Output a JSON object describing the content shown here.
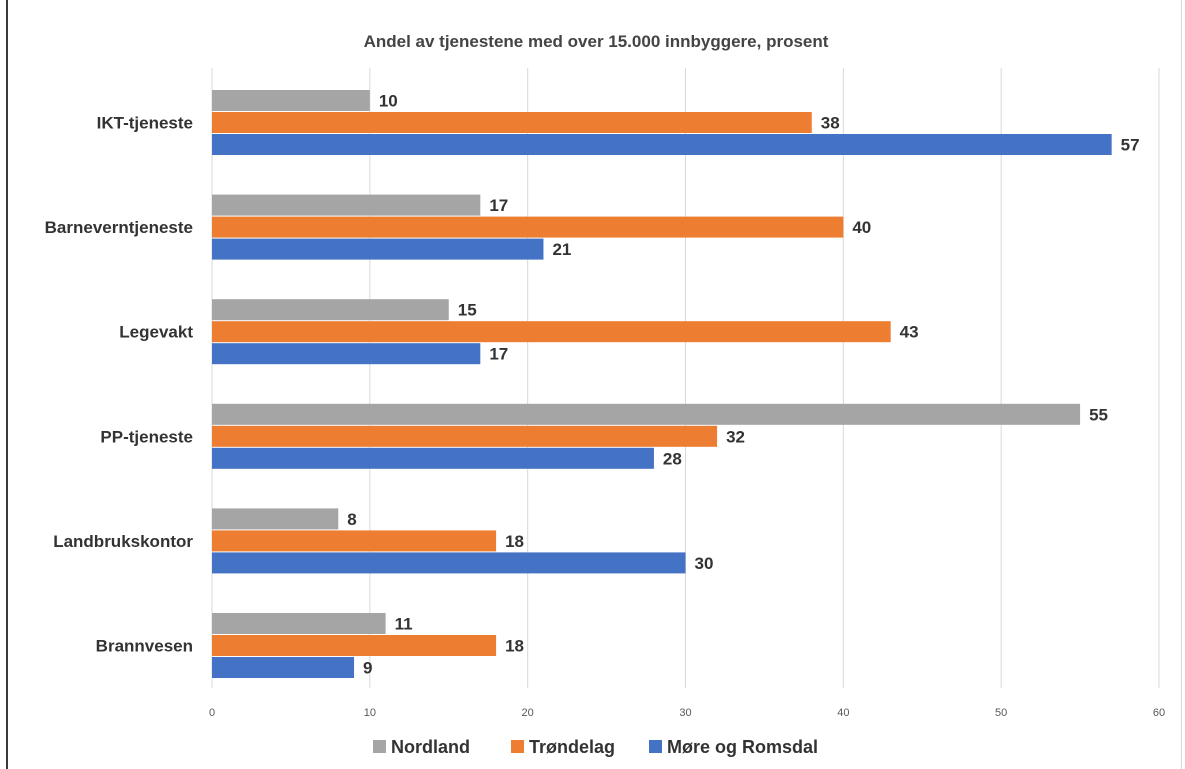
{
  "chart_data": {
    "type": "bar",
    "orientation": "horizontal",
    "title": "Andel av tjenestene med over 15.000 innbyggere, prosent",
    "categories": [
      "IKT-tjeneste",
      "Barneverntjeneste",
      "Legevakt",
      "PP-tjeneste",
      "Landbrukskontor",
      "Brannvesen"
    ],
    "series": [
      {
        "name": "Nordland",
        "color": "#a5a5a5",
        "values": [
          10,
          17,
          15,
          55,
          8,
          11
        ]
      },
      {
        "name": "Trøndelag",
        "color": "#ed7d31",
        "values": [
          38,
          40,
          43,
          32,
          18,
          18
        ]
      },
      {
        "name": "Møre og Romsdal",
        "color": "#4472c4",
        "values": [
          57,
          21,
          17,
          28,
          30,
          9
        ]
      }
    ],
    "xlim": [
      0,
      60
    ],
    "xticks": [
      0,
      10,
      20,
      30,
      40,
      50,
      60
    ],
    "xticklabels": [
      "0",
      "10",
      "20",
      "30",
      "40",
      "50",
      "60"
    ],
    "grid": true,
    "legend_position": "bottom",
    "data_labels": true
  }
}
